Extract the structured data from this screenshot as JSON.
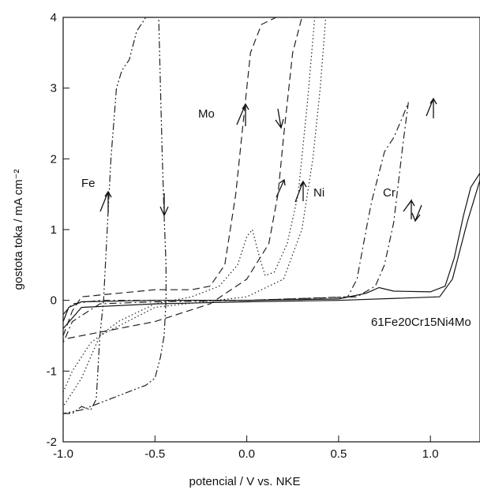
{
  "chart_data": {
    "type": "line",
    "xlabel": "potencial / V vs. NKE",
    "ylabel": "gostota toka / mA cm⁻²",
    "xlim": [
      -1.0,
      1.27
    ],
    "ylim": [
      -2,
      4
    ],
    "xticks": [
      {
        "value": -1.0,
        "label": "-1.0"
      },
      {
        "value": -0.5,
        "label": "-0.5"
      },
      {
        "value": 0.0,
        "label": "0.0"
      },
      {
        "value": 0.5,
        "label": "0.5"
      },
      {
        "value": 1.0,
        "label": "1.0"
      }
    ],
    "yticks": [
      -2,
      -1,
      0,
      1,
      2,
      3,
      4
    ],
    "series": [
      {
        "name": "Fe",
        "color": "#222",
        "dash": "dashdotdot",
        "x": [
          -1.0,
          -0.95,
          -0.9,
          -0.85,
          -0.82,
          -0.8,
          -0.78,
          -0.76,
          -0.74,
          -0.71,
          -0.68,
          -0.64,
          -0.6,
          -0.55,
          -0.48,
          -0.47,
          -0.46,
          -0.45,
          -0.44,
          -0.44,
          -0.45,
          -0.47,
          -0.5,
          -0.55,
          -0.65,
          -0.8,
          -0.9,
          -1.0
        ],
        "values": [
          -1.6,
          -1.6,
          -1.5,
          -1.55,
          -1.4,
          -0.5,
          0.0,
          1.0,
          2.0,
          3.0,
          3.25,
          3.4,
          3.8,
          4.0,
          4.0,
          3.0,
          2.0,
          1.2,
          0.5,
          0.0,
          -0.5,
          -0.8,
          -1.1,
          -1.2,
          -1.3,
          -1.45,
          -1.55,
          -1.6
        ]
      },
      {
        "name": "Mo",
        "color": "#222",
        "dash": "dash",
        "x": [
          -1.0,
          -0.95,
          -0.9,
          -0.7,
          -0.5,
          -0.3,
          -0.2,
          -0.12,
          -0.06,
          -0.02,
          0.02,
          0.08,
          0.16,
          0.3,
          0.25,
          0.2,
          0.17,
          0.12,
          0.0,
          -0.2,
          -0.5,
          -0.8,
          -1.0
        ],
        "values": [
          -0.5,
          -0.15,
          0.05,
          0.1,
          0.15,
          0.15,
          0.2,
          0.5,
          1.5,
          2.5,
          3.5,
          3.9,
          4.0,
          4.0,
          3.5,
          2.3,
          1.5,
          0.8,
          0.3,
          -0.05,
          -0.3,
          -0.45,
          -0.55
        ]
      },
      {
        "name": "Ni",
        "color": "#222",
        "dash": "dot",
        "x": [
          -1.0,
          -0.95,
          -0.85,
          -0.7,
          -0.5,
          -0.3,
          -0.15,
          -0.05,
          0.0,
          0.03,
          0.07,
          0.1,
          0.15,
          0.22,
          0.28,
          0.33,
          0.37,
          0.43,
          0.4,
          0.36,
          0.3,
          0.2,
          0.0,
          -0.5,
          -0.8,
          -0.9,
          -1.0
        ],
        "values": [
          -1.3,
          -1.0,
          -0.6,
          -0.3,
          -0.05,
          0.05,
          0.2,
          0.5,
          0.9,
          1.0,
          0.6,
          0.35,
          0.4,
          0.8,
          1.5,
          2.8,
          4.0,
          4.0,
          3.0,
          2.0,
          1.0,
          0.3,
          0.05,
          -0.1,
          -0.5,
          -1.1,
          -1.5
        ]
      },
      {
        "name": "Cr",
        "color": "#222",
        "dash": "dashdot",
        "x": [
          -1.0,
          -0.95,
          -0.8,
          0.0,
          0.55,
          0.6,
          0.65,
          0.68,
          0.72,
          0.75,
          0.8,
          0.85,
          0.88,
          0.85,
          0.8,
          0.75,
          0.7,
          0.6,
          0.0,
          -0.5,
          -0.8,
          -0.95,
          -1.0
        ],
        "values": [
          -0.2,
          -0.05,
          0.0,
          0.0,
          0.05,
          0.3,
          1.0,
          1.4,
          1.8,
          2.1,
          2.3,
          2.6,
          2.8,
          2.2,
          1.1,
          0.5,
          0.2,
          0.05,
          0.0,
          -0.02,
          -0.05,
          -0.3,
          -0.6
        ]
      },
      {
        "name": "61Fe20Cr15Ni4Mo",
        "color": "#111",
        "dash": "solid",
        "x": [
          -1.0,
          -0.97,
          -0.9,
          -0.5,
          0.0,
          0.5,
          0.65,
          0.72,
          0.8,
          1.0,
          1.08,
          1.13,
          1.18,
          1.22,
          1.27,
          1.27,
          1.2,
          1.12,
          1.05,
          0.5,
          0.0,
          -0.5,
          -0.9,
          -1.0
        ],
        "values": [
          -0.3,
          -0.1,
          -0.02,
          0.0,
          0.0,
          0.02,
          0.1,
          0.18,
          0.13,
          0.12,
          0.2,
          0.6,
          1.2,
          1.6,
          1.8,
          1.7,
          1.1,
          0.3,
          0.05,
          0.0,
          -0.02,
          -0.05,
          -0.1,
          -0.4
        ]
      }
    ]
  }
}
